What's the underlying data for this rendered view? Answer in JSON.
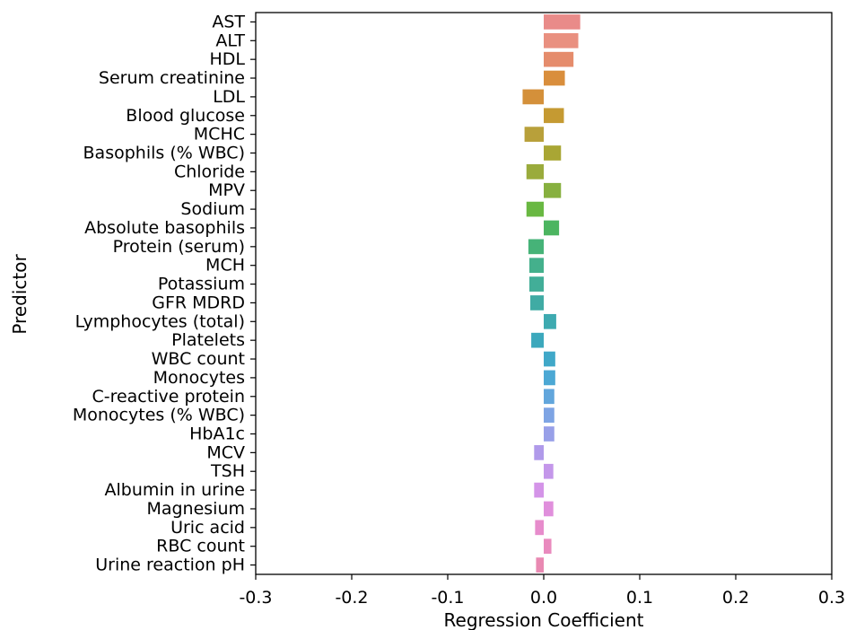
{
  "chart_data": {
    "type": "bar",
    "orientation": "horizontal",
    "categories": [
      "AST",
      "ALT",
      "HDL",
      "Serum creatinine",
      "LDL",
      "Blood glucose",
      "MCHC",
      "Basophils (% WBC)",
      "Chloride",
      "MPV",
      "Sodium",
      "Absolute basophils",
      "Protein (serum)",
      "MCH",
      "Potassium",
      "GFR MDRD",
      "Lymphocytes (total)",
      "Platelets",
      "WBC count",
      "Monocytes",
      "C-reactive protein",
      "Monocytes (% WBC)",
      "HbA1c",
      "MCV",
      "TSH",
      "Albumin in urine",
      "Magnesium",
      "Uric acid",
      "RBC count",
      "Urine reaction pH"
    ],
    "values": [
      0.038,
      0.036,
      0.031,
      0.022,
      -0.022,
      0.021,
      -0.02,
      0.018,
      -0.018,
      0.018,
      -0.018,
      0.016,
      -0.016,
      -0.015,
      -0.015,
      -0.014,
      0.013,
      -0.013,
      0.012,
      0.012,
      0.011,
      0.011,
      0.011,
      -0.01,
      0.01,
      -0.01,
      0.01,
      -0.009,
      0.008,
      -0.008
    ],
    "colors": [
      "#e98b89",
      "#e99080",
      "#e58c6c",
      "#d98e3c",
      "#d4903a",
      "#c59a32",
      "#b8a03a",
      "#a9a634",
      "#9aab3c",
      "#87b03f",
      "#69b842",
      "#4cb560",
      "#46b378",
      "#44b08c",
      "#42ae98",
      "#40aba4",
      "#3eaab0",
      "#3ca8bc",
      "#40a8c8",
      "#4ca8d4",
      "#62a6dc",
      "#7ea4e4",
      "#98a0e8",
      "#b09aea",
      "#c497ea",
      "#d494e8",
      "#e08fdc",
      "#e78ccc",
      "#e98abe",
      "#e989b2"
    ],
    "xlabel": "Regression Coefficient",
    "ylabel": "Predictor",
    "xlim": [
      -0.3,
      0.3
    ],
    "xticks": [
      "-0.3",
      "-0.2",
      "-0.1",
      "0.0",
      "0.1",
      "0.2",
      "0.3"
    ],
    "grid": false,
    "legend": false
  }
}
